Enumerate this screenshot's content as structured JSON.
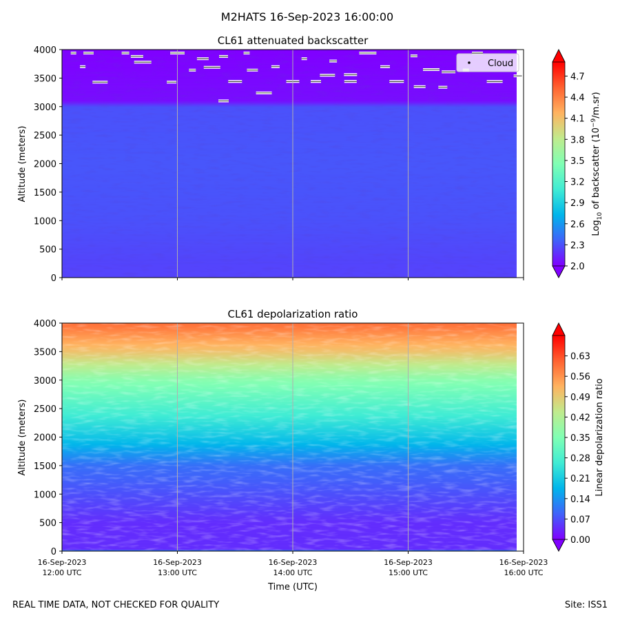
{
  "figure": {
    "suptitle": "M2HATS 16-Sep-2023 16:00:00",
    "footer_left": "REAL TIME DATA, NOT CHECKED FOR QUALITY",
    "footer_right": "Site: ISS1"
  },
  "chart_data": [
    {
      "type": "heatmap",
      "title": "CL61 attenuated backscatter",
      "ylabel": "Altitude (meters)",
      "ylim": [
        0,
        4000
      ],
      "yticks": [
        "0",
        "500",
        "1000",
        "1500",
        "2000",
        "2500",
        "3000",
        "3500",
        "4000"
      ],
      "xlim_hours_utc": [
        12,
        16
      ],
      "colormap": "rainbow",
      "colorbar": {
        "label_prefix": "Log",
        "label_sub": "10",
        "label_mid": " of backscatter (10",
        "label_sup": "−9",
        "label_suffix": "/m.sr)",
        "range": [
          2.0,
          4.9
        ],
        "ticks": [
          "2.0",
          "2.3",
          "2.6",
          "2.9",
          "3.2",
          "3.5",
          "3.8",
          "4.1",
          "4.4",
          "4.7"
        ]
      },
      "legend": {
        "label": "Cloud",
        "placement": "upper-right"
      },
      "profile": [
        {
          "altitude_m": 0,
          "value": 2.25
        },
        {
          "altitude_m": 200,
          "value": 2.25
        },
        {
          "altitude_m": 1000,
          "value": 2.3
        },
        {
          "altitude_m": 2000,
          "value": 2.32
        },
        {
          "altitude_m": 3000,
          "value": 2.3
        },
        {
          "altitude_m": 3100,
          "value": 2.05
        },
        {
          "altitude_m": 4000,
          "value": 2.0
        }
      ],
      "cloud_points": [
        {
          "time_hours_utc": 12.18,
          "altitude_m": 3700
        },
        {
          "time_hours_utc": 12.23,
          "altitude_m": 3940
        },
        {
          "time_hours_utc": 12.33,
          "altitude_m": 3430
        },
        {
          "time_hours_utc": 12.55,
          "altitude_m": 3940
        },
        {
          "time_hours_utc": 12.65,
          "altitude_m": 3880
        },
        {
          "time_hours_utc": 12.7,
          "altitude_m": 3780
        },
        {
          "time_hours_utc": 12.95,
          "altitude_m": 3430
        },
        {
          "time_hours_utc": 13.0,
          "altitude_m": 3940
        },
        {
          "time_hours_utc": 13.13,
          "altitude_m": 3640
        },
        {
          "time_hours_utc": 13.22,
          "altitude_m": 3840
        },
        {
          "time_hours_utc": 13.3,
          "altitude_m": 3690
        },
        {
          "time_hours_utc": 13.4,
          "altitude_m": 3880
        },
        {
          "time_hours_utc": 13.5,
          "altitude_m": 3440
        },
        {
          "time_hours_utc": 13.6,
          "altitude_m": 3940
        },
        {
          "time_hours_utc": 13.65,
          "altitude_m": 3640
        },
        {
          "time_hours_utc": 13.75,
          "altitude_m": 3240
        },
        {
          "time_hours_utc": 13.85,
          "altitude_m": 3700
        },
        {
          "time_hours_utc": 14.0,
          "altitude_m": 3440
        },
        {
          "time_hours_utc": 14.1,
          "altitude_m": 3840
        },
        {
          "time_hours_utc": 14.2,
          "altitude_m": 3440
        },
        {
          "time_hours_utc": 14.3,
          "altitude_m": 3550
        },
        {
          "time_hours_utc": 14.35,
          "altitude_m": 3800
        },
        {
          "time_hours_utc": 14.5,
          "altitude_m": 3440
        },
        {
          "time_hours_utc": 14.65,
          "altitude_m": 3940
        },
        {
          "time_hours_utc": 14.8,
          "altitude_m": 3700
        },
        {
          "time_hours_utc": 14.9,
          "altitude_m": 3440
        },
        {
          "time_hours_utc": 15.05,
          "altitude_m": 3890
        },
        {
          "time_hours_utc": 15.1,
          "altitude_m": 3350
        },
        {
          "time_hours_utc": 15.2,
          "altitude_m": 3650
        },
        {
          "time_hours_utc": 15.3,
          "altitude_m": 3340
        },
        {
          "time_hours_utc": 15.35,
          "altitude_m": 3610
        },
        {
          "time_hours_utc": 15.5,
          "altitude_m": 3640
        },
        {
          "time_hours_utc": 15.6,
          "altitude_m": 3940
        },
        {
          "time_hours_utc": 15.75,
          "altitude_m": 3440
        },
        {
          "time_hours_utc": 15.95,
          "altitude_m": 3540
        },
        {
          "time_hours_utc": 14.5,
          "altitude_m": 3560
        },
        {
          "time_hours_utc": 12.1,
          "altitude_m": 3940
        },
        {
          "time_hours_utc": 13.4,
          "altitude_m": 3100
        }
      ]
    },
    {
      "type": "heatmap",
      "title": "CL61 depolarization ratio",
      "ylabel": "Altitude (meters)",
      "xlabel": "Time (UTC)",
      "ylim": [
        0,
        4000
      ],
      "yticks": [
        "0",
        "500",
        "1000",
        "1500",
        "2000",
        "2500",
        "3000",
        "3500",
        "4000"
      ],
      "xlim_hours_utc": [
        12,
        16
      ],
      "xticks": [
        {
          "hour": 12,
          "line1": "16-Sep-2023",
          "line2": "12:00 UTC"
        },
        {
          "hour": 13,
          "line1": "16-Sep-2023",
          "line2": "13:00 UTC"
        },
        {
          "hour": 14,
          "line1": "16-Sep-2023",
          "line2": "14:00 UTC"
        },
        {
          "hour": 15,
          "line1": "16-Sep-2023",
          "line2": "15:00 UTC"
        },
        {
          "hour": 16,
          "line1": "16-Sep-2023",
          "line2": "16:00 UTC"
        }
      ],
      "colormap": "rainbow",
      "colorbar": {
        "label": "Linear depolarization ratio",
        "range": [
          0.0,
          0.7
        ],
        "ticks": [
          "0.00",
          "0.07",
          "0.14",
          "0.21",
          "0.28",
          "0.35",
          "0.42",
          "0.49",
          "0.56",
          "0.63"
        ]
      },
      "profile": [
        {
          "altitude_m": 0,
          "value": 0.25
        },
        {
          "altitude_m": 20,
          "value": 0.04
        },
        {
          "altitude_m": 500,
          "value": 0.04
        },
        {
          "altitude_m": 1000,
          "value": 0.07
        },
        {
          "altitude_m": 1500,
          "value": 0.1
        },
        {
          "altitude_m": 2000,
          "value": 0.2
        },
        {
          "altitude_m": 2500,
          "value": 0.28
        },
        {
          "altitude_m": 3000,
          "value": 0.36
        },
        {
          "altitude_m": 3500,
          "value": 0.5
        },
        {
          "altitude_m": 4000,
          "value": 0.6
        }
      ]
    }
  ]
}
